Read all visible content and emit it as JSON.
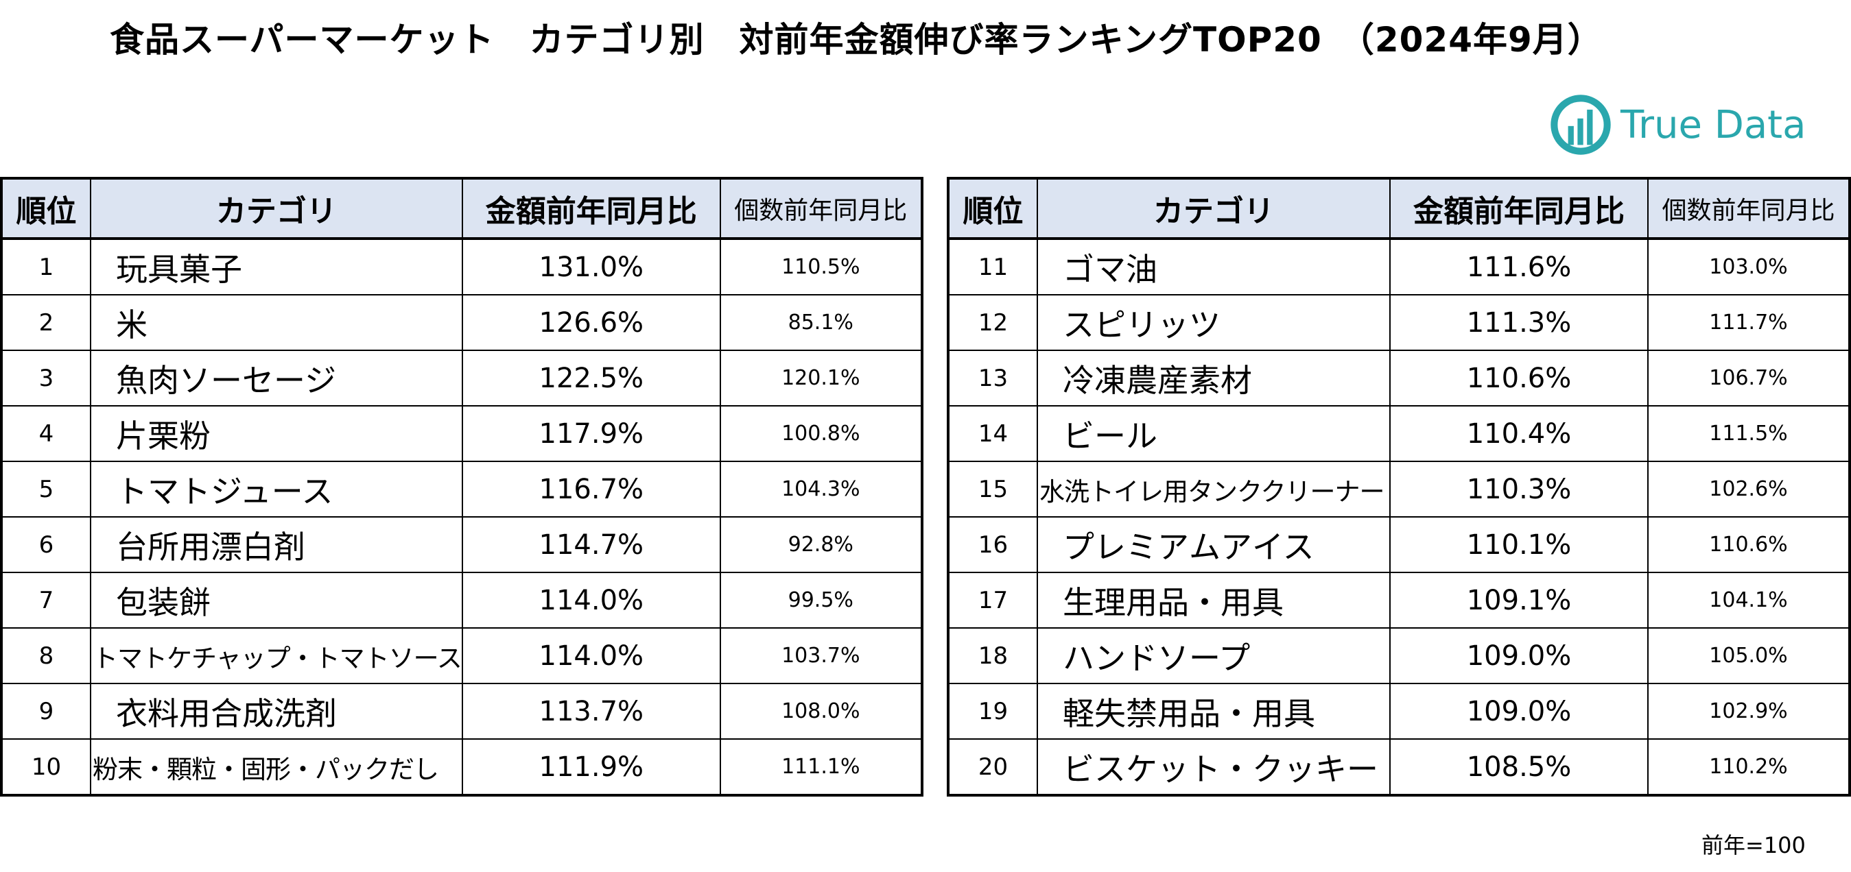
{
  "title": "食品スーパーマーケット　カテゴリ別　対前年金額伸び率ランキングTOP20　（2024年9月）",
  "logo": {
    "text": "True Data",
    "color": "#2aa7ad",
    "icon": "truedata-logo-icon"
  },
  "table": {
    "headers": {
      "rank": "順位",
      "category": "カテゴリ",
      "amount_yoy": "金額前年同月比",
      "count_yoy": "個数前年同月比"
    },
    "header_bg": "#dce4f2",
    "rows_left": [
      {
        "rank": "1",
        "category": "玩具菓子",
        "amount": "131.0%",
        "count": "110.5%"
      },
      {
        "rank": "2",
        "category": "米",
        "amount": "126.6%",
        "count": "85.1%"
      },
      {
        "rank": "3",
        "category": "魚肉ソーセージ",
        "amount": "122.5%",
        "count": "120.1%"
      },
      {
        "rank": "4",
        "category": "片栗粉",
        "amount": "117.9%",
        "count": "100.8%"
      },
      {
        "rank": "5",
        "category": "トマトジュース",
        "amount": "116.7%",
        "count": "104.3%"
      },
      {
        "rank": "6",
        "category": "台所用漂白剤",
        "amount": "114.7%",
        "count": "92.8%"
      },
      {
        "rank": "7",
        "category": "包装餅",
        "amount": "114.0%",
        "count": "99.5%"
      },
      {
        "rank": "8",
        "category": "トマトケチャップ・トマトソース",
        "amount": "114.0%",
        "count": "103.7%",
        "long": true
      },
      {
        "rank": "9",
        "category": "衣料用合成洗剤",
        "amount": "113.7%",
        "count": "108.0%"
      },
      {
        "rank": "10",
        "category": "粉末・顆粒・固形・パックだし",
        "amount": "111.9%",
        "count": "111.1%",
        "long": true
      }
    ],
    "rows_right": [
      {
        "rank": "11",
        "category": "ゴマ油",
        "amount": "111.6%",
        "count": "103.0%"
      },
      {
        "rank": "12",
        "category": "スピリッツ",
        "amount": "111.3%",
        "count": "111.7%"
      },
      {
        "rank": "13",
        "category": "冷凍農産素材",
        "amount": "110.6%",
        "count": "106.7%"
      },
      {
        "rank": "14",
        "category": "ビール",
        "amount": "110.4%",
        "count": "111.5%"
      },
      {
        "rank": "15",
        "category": "水洗トイレ用タンククリーナー",
        "amount": "110.3%",
        "count": "102.6%",
        "long": true
      },
      {
        "rank": "16",
        "category": "プレミアムアイス",
        "amount": "110.1%",
        "count": "110.6%"
      },
      {
        "rank": "17",
        "category": "生理用品・用具",
        "amount": "109.1%",
        "count": "104.1%"
      },
      {
        "rank": "18",
        "category": "ハンドソープ",
        "amount": "109.0%",
        "count": "105.0%"
      },
      {
        "rank": "19",
        "category": "軽失禁用品・用具",
        "amount": "109.0%",
        "count": "102.9%"
      },
      {
        "rank": "20",
        "category": "ビスケット・クッキー",
        "amount": "108.5%",
        "count": "110.2%"
      }
    ]
  },
  "note": "前年=100"
}
